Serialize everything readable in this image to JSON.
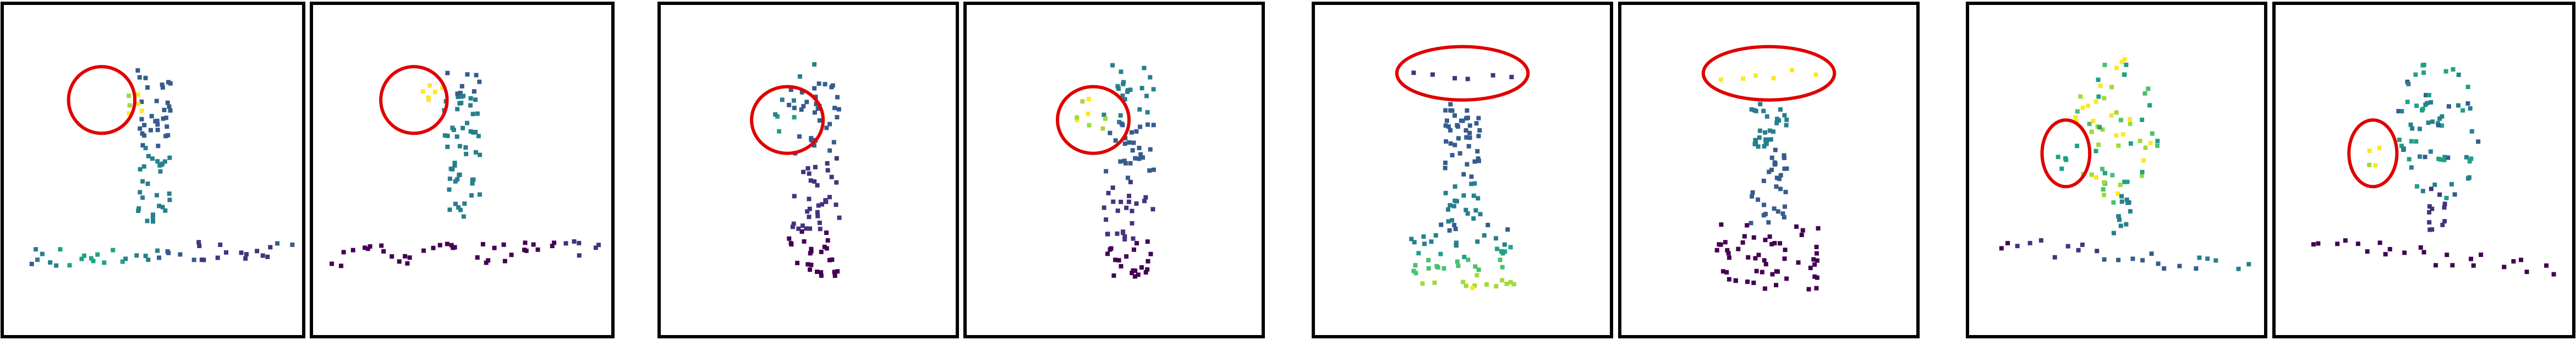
{
  "figure": {
    "panel_count": 8,
    "pair_count": 4,
    "panel_border_color": "#000000",
    "highlight_color": "#e00000",
    "colormap": "viridis",
    "highlight_shapes": [
      "circle",
      "circle",
      "circle",
      "circle",
      "ellipse",
      "ellipse",
      "ellipse",
      "ellipse"
    ]
  }
}
